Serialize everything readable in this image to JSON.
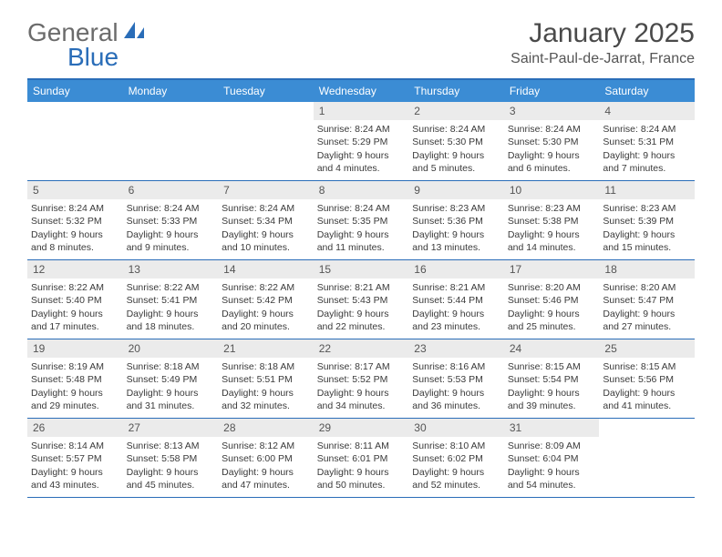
{
  "logo": {
    "text1": "General",
    "text2": "Blue",
    "icon_color": "#2a6db8"
  },
  "title": "January 2025",
  "location": "Saint-Paul-de-Jarrat, France",
  "colors": {
    "header_bg": "#3b8cd4",
    "header_border": "#2a6db8",
    "daynum_bg": "#ebebeb",
    "text": "#3a3a3a"
  },
  "day_names": [
    "Sunday",
    "Monday",
    "Tuesday",
    "Wednesday",
    "Thursday",
    "Friday",
    "Saturday"
  ],
  "weeks": [
    [
      null,
      null,
      null,
      {
        "n": "1",
        "sr": "8:24 AM",
        "ss": "5:29 PM",
        "dl": "9 hours and 4 minutes."
      },
      {
        "n": "2",
        "sr": "8:24 AM",
        "ss": "5:30 PM",
        "dl": "9 hours and 5 minutes."
      },
      {
        "n": "3",
        "sr": "8:24 AM",
        "ss": "5:30 PM",
        "dl": "9 hours and 6 minutes."
      },
      {
        "n": "4",
        "sr": "8:24 AM",
        "ss": "5:31 PM",
        "dl": "9 hours and 7 minutes."
      }
    ],
    [
      {
        "n": "5",
        "sr": "8:24 AM",
        "ss": "5:32 PM",
        "dl": "9 hours and 8 minutes."
      },
      {
        "n": "6",
        "sr": "8:24 AM",
        "ss": "5:33 PM",
        "dl": "9 hours and 9 minutes."
      },
      {
        "n": "7",
        "sr": "8:24 AM",
        "ss": "5:34 PM",
        "dl": "9 hours and 10 minutes."
      },
      {
        "n": "8",
        "sr": "8:24 AM",
        "ss": "5:35 PM",
        "dl": "9 hours and 11 minutes."
      },
      {
        "n": "9",
        "sr": "8:23 AM",
        "ss": "5:36 PM",
        "dl": "9 hours and 13 minutes."
      },
      {
        "n": "10",
        "sr": "8:23 AM",
        "ss": "5:38 PM",
        "dl": "9 hours and 14 minutes."
      },
      {
        "n": "11",
        "sr": "8:23 AM",
        "ss": "5:39 PM",
        "dl": "9 hours and 15 minutes."
      }
    ],
    [
      {
        "n": "12",
        "sr": "8:22 AM",
        "ss": "5:40 PM",
        "dl": "9 hours and 17 minutes."
      },
      {
        "n": "13",
        "sr": "8:22 AM",
        "ss": "5:41 PM",
        "dl": "9 hours and 18 minutes."
      },
      {
        "n": "14",
        "sr": "8:22 AM",
        "ss": "5:42 PM",
        "dl": "9 hours and 20 minutes."
      },
      {
        "n": "15",
        "sr": "8:21 AM",
        "ss": "5:43 PM",
        "dl": "9 hours and 22 minutes."
      },
      {
        "n": "16",
        "sr": "8:21 AM",
        "ss": "5:44 PM",
        "dl": "9 hours and 23 minutes."
      },
      {
        "n": "17",
        "sr": "8:20 AM",
        "ss": "5:46 PM",
        "dl": "9 hours and 25 minutes."
      },
      {
        "n": "18",
        "sr": "8:20 AM",
        "ss": "5:47 PM",
        "dl": "9 hours and 27 minutes."
      }
    ],
    [
      {
        "n": "19",
        "sr": "8:19 AM",
        "ss": "5:48 PM",
        "dl": "9 hours and 29 minutes."
      },
      {
        "n": "20",
        "sr": "8:18 AM",
        "ss": "5:49 PM",
        "dl": "9 hours and 31 minutes."
      },
      {
        "n": "21",
        "sr": "8:18 AM",
        "ss": "5:51 PM",
        "dl": "9 hours and 32 minutes."
      },
      {
        "n": "22",
        "sr": "8:17 AM",
        "ss": "5:52 PM",
        "dl": "9 hours and 34 minutes."
      },
      {
        "n": "23",
        "sr": "8:16 AM",
        "ss": "5:53 PM",
        "dl": "9 hours and 36 minutes."
      },
      {
        "n": "24",
        "sr": "8:15 AM",
        "ss": "5:54 PM",
        "dl": "9 hours and 39 minutes."
      },
      {
        "n": "25",
        "sr": "8:15 AM",
        "ss": "5:56 PM",
        "dl": "9 hours and 41 minutes."
      }
    ],
    [
      {
        "n": "26",
        "sr": "8:14 AM",
        "ss": "5:57 PM",
        "dl": "9 hours and 43 minutes."
      },
      {
        "n": "27",
        "sr": "8:13 AM",
        "ss": "5:58 PM",
        "dl": "9 hours and 45 minutes."
      },
      {
        "n": "28",
        "sr": "8:12 AM",
        "ss": "6:00 PM",
        "dl": "9 hours and 47 minutes."
      },
      {
        "n": "29",
        "sr": "8:11 AM",
        "ss": "6:01 PM",
        "dl": "9 hours and 50 minutes."
      },
      {
        "n": "30",
        "sr": "8:10 AM",
        "ss": "6:02 PM",
        "dl": "9 hours and 52 minutes."
      },
      {
        "n": "31",
        "sr": "8:09 AM",
        "ss": "6:04 PM",
        "dl": "9 hours and 54 minutes."
      },
      null
    ]
  ],
  "labels": {
    "sunrise": "Sunrise:",
    "sunset": "Sunset:",
    "daylight": "Daylight:"
  }
}
